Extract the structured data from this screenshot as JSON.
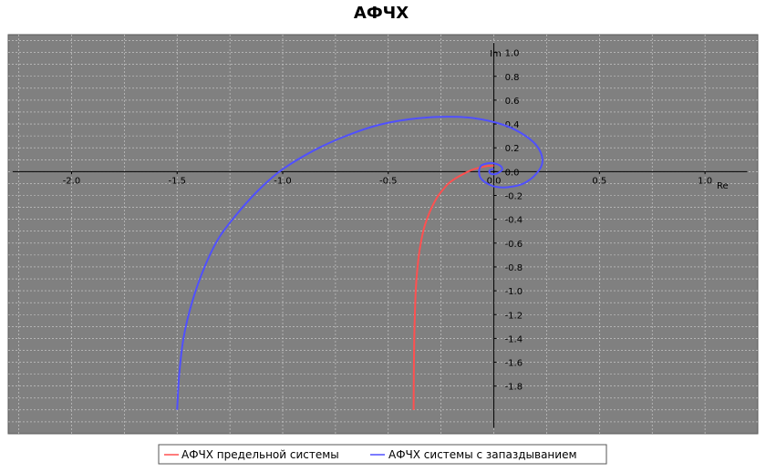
{
  "chart_data": {
    "type": "line",
    "title": "АФЧХ",
    "xlabel": "Re",
    "ylabel": "Im",
    "xlim": [
      -2.3,
      1.25
    ],
    "ylim": [
      -2.2,
      1.15
    ],
    "grid": true,
    "legend_position": "bottom",
    "x_ticks": [
      -2.0,
      -1.5,
      -1.0,
      -0.5,
      0.0,
      0.5,
      1.0
    ],
    "x_tick_labels": [
      "-2.0",
      "-1.5",
      "-1.0",
      "-0.5",
      "0.0",
      "0.5",
      "1.0"
    ],
    "y_ticks": [
      1.0,
      0.8,
      0.6,
      0.4,
      0.2,
      0.0,
      -0.2,
      -0.4,
      -0.6,
      -0.8,
      -1.0,
      -1.2,
      -1.4,
      -1.6,
      -1.8
    ],
    "y_tick_labels": [
      "1.0",
      "0.8",
      "0.6",
      "0.4",
      "0.2",
      "0.0",
      "-0.2",
      "-0.4",
      "-0.6",
      "-0.8",
      "-1.0",
      "-1.2",
      "-1.4",
      "-1.6",
      "-1.8"
    ],
    "series": [
      {
        "name": "АФЧХ предельной системы",
        "color": "#ff5050",
        "x": [
          -0.38,
          -0.379,
          -0.377,
          -0.374,
          -0.37,
          -0.364,
          -0.355,
          -0.344,
          -0.33,
          -0.313,
          -0.294,
          -0.27,
          -0.245,
          -0.215,
          -0.18,
          -0.145,
          -0.11,
          -0.075,
          -0.04,
          0.0
        ],
        "y": [
          -2.0,
          -1.7,
          -1.4,
          -1.2,
          -1.0,
          -0.85,
          -0.7,
          -0.58,
          -0.47,
          -0.38,
          -0.3,
          -0.22,
          -0.16,
          -0.1,
          -0.055,
          -0.02,
          0.01,
          0.03,
          0.045,
          0.05
        ]
      },
      {
        "name": "АФЧХ системы с запаздыванием",
        "color": "#5050ff",
        "x": [
          -1.5,
          -1.49,
          -1.47,
          -1.43,
          -1.37,
          -1.3,
          -1.2,
          -1.1,
          -1.0,
          -0.85,
          -0.7,
          -0.55,
          -0.4,
          -0.25,
          -0.1,
          0.05,
          0.15,
          0.21,
          0.23,
          0.2,
          0.14,
          0.07,
          0.02,
          -0.02,
          -0.06,
          -0.07,
          -0.06,
          -0.03,
          0.0,
          0.03,
          0.04,
          0.03,
          0.01,
          -0.01,
          -0.02,
          -0.02,
          -0.01,
          0.0
        ],
        "y": [
          -2.0,
          -1.7,
          -1.4,
          -1.1,
          -0.8,
          -0.55,
          -0.32,
          -0.13,
          0.02,
          0.18,
          0.3,
          0.39,
          0.44,
          0.46,
          0.45,
          0.39,
          0.3,
          0.2,
          0.08,
          -0.02,
          -0.1,
          -0.13,
          -0.13,
          -0.11,
          -0.06,
          0.0,
          0.05,
          0.07,
          0.07,
          0.05,
          0.02,
          0.0,
          -0.02,
          -0.02,
          -0.01,
          0.01,
          0.02,
          0.02
        ]
      }
    ]
  }
}
